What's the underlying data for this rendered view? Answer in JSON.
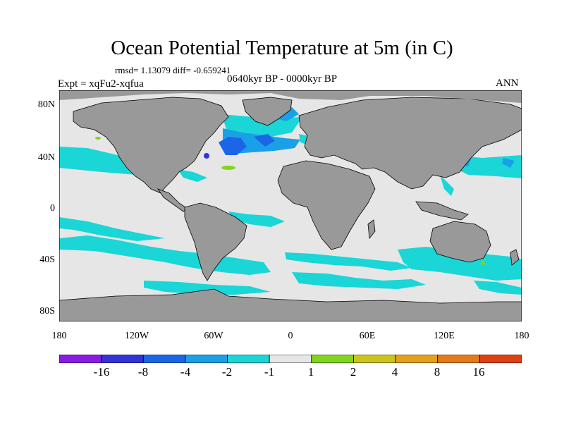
{
  "title": "Ocean Potential Temperature at 5m (in C)",
  "stats": "rmsd= 1.13079 diff= -0.659241",
  "experiment": "Expt = xqFu2-xqfua",
  "period": "0640kyr BP - 0000kyr BP",
  "season": "ANN",
  "lat_ticks": [
    "80N",
    "40N",
    "0",
    "40S",
    "80S"
  ],
  "lon_ticks": [
    "180",
    "120W",
    "60W",
    "0",
    "60E",
    "120E",
    "180"
  ],
  "colorbar": {
    "labels": [
      "-16",
      "-8",
      "-4",
      "-2",
      "-1",
      "1",
      "2",
      "4",
      "8",
      "16"
    ],
    "colors": [
      "#8a1ae6",
      "#3333d9",
      "#1a66e6",
      "#1aa0e6",
      "#1ad6d6",
      "#e6e6e6",
      "#80d61a",
      "#ccc41a",
      "#e6a01a",
      "#e67a1a",
      "#e04010"
    ]
  },
  "colors": {
    "land": "#999999",
    "no_change": "#e6e6e6",
    "cool_1_2": "#1ad6d6",
    "cool_2_4": "#1aa0e6",
    "cool_4_8": "#1a66e6",
    "warm_1_2": "#80d61a"
  }
}
